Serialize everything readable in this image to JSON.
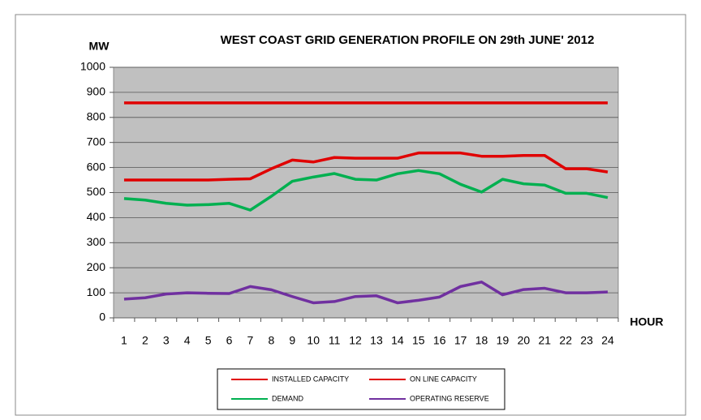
{
  "chart_data": {
    "type": "line",
    "title": "WEST COAST GRID GENERATION PROFILE ON 29th JUNE' 2012",
    "y_label": "MW",
    "x_label": "HOUR",
    "categories": [
      1,
      2,
      3,
      4,
      5,
      6,
      7,
      8,
      9,
      10,
      11,
      12,
      13,
      14,
      15,
      16,
      17,
      18,
      19,
      20,
      21,
      22,
      23,
      24
    ],
    "series": [
      {
        "name": "INSTALLED CAPACITY",
        "color": "#e00000",
        "values": [
          858,
          858,
          858,
          858,
          858,
          858,
          858,
          858,
          858,
          858,
          858,
          858,
          858,
          858,
          858,
          858,
          858,
          858,
          858,
          858,
          858,
          858,
          858,
          858
        ]
      },
      {
        "name": "ON LINE CAPACITY",
        "color": "#e00000",
        "values": [
          550,
          550,
          550,
          550,
          550,
          553,
          555,
          595,
          630,
          622,
          640,
          637,
          637,
          637,
          658,
          658,
          658,
          645,
          645,
          648,
          648,
          595,
          595,
          582
        ]
      },
      {
        "name": "DEMAND",
        "color": "#00b050",
        "values": [
          476,
          470,
          457,
          450,
          452,
          457,
          430,
          485,
          545,
          562,
          576,
          553,
          550,
          575,
          588,
          575,
          533,
          502,
          553,
          535,
          530,
          497,
          497,
          480
        ]
      },
      {
        "name": "OPERATING RESERVE",
        "color": "#7030a0",
        "values": [
          75,
          80,
          95,
          100,
          98,
          97,
          125,
          112,
          85,
          60,
          65,
          85,
          88,
          60,
          70,
          83,
          125,
          143,
          92,
          113,
          118,
          100,
          100,
          103
        ]
      }
    ],
    "ylim": [
      0,
      1000
    ],
    "yticks": [
      0,
      100,
      200,
      300,
      400,
      500,
      600,
      700,
      800,
      900,
      1000
    ],
    "grid": true
  }
}
